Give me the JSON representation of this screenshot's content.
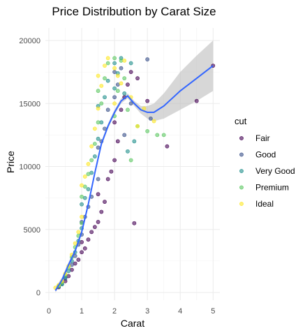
{
  "chart_data": {
    "type": "scatter",
    "title": "Price Distribution by Carat Size",
    "xlabel": "Carat",
    "ylabel": "Price",
    "xlim": [
      0,
      5.1
    ],
    "ylim": [
      0,
      20000
    ],
    "x_ticks": [
      0,
      1,
      2,
      3,
      4,
      5
    ],
    "x_tick_labels": [
      "0",
      "1",
      "2",
      "3",
      "4",
      "5"
    ],
    "y_ticks": [
      0,
      5000,
      10000,
      15000,
      20000
    ],
    "y_tick_labels": [
      "0",
      "5000",
      "10000",
      "15000",
      "20000"
    ],
    "grid": true,
    "legend": {
      "title": "cut",
      "placement": "right"
    },
    "series": [
      {
        "name": "Fair",
        "color": "#440154",
        "points": [
          [
            0.3,
            420
          ],
          [
            0.5,
            900
          ],
          [
            0.6,
            1300
          ],
          [
            0.7,
            1800
          ],
          [
            0.8,
            2300
          ],
          [
            0.9,
            2600
          ],
          [
            1.0,
            3200
          ],
          [
            1.0,
            4000
          ],
          [
            1.1,
            3500
          ],
          [
            1.2,
            4200
          ],
          [
            1.3,
            4800
          ],
          [
            1.4,
            5200
          ],
          [
            1.5,
            5600
          ],
          [
            1.5,
            7800
          ],
          [
            1.6,
            6400
          ],
          [
            1.7,
            7200
          ],
          [
            1.8,
            9000
          ],
          [
            1.9,
            9600
          ],
          [
            2.0,
            10500
          ],
          [
            2.0,
            13500
          ],
          [
            2.1,
            12000
          ],
          [
            2.2,
            14500
          ],
          [
            2.3,
            15500
          ],
          [
            2.4,
            16500
          ],
          [
            2.5,
            17500
          ],
          [
            2.6,
            5500
          ],
          [
            2.7,
            17000
          ],
          [
            3.0,
            15200
          ],
          [
            3.6,
            11600
          ],
          [
            4.5,
            15200
          ],
          [
            5.0,
            18000
          ]
        ]
      },
      {
        "name": "Good",
        "color": "#3b528b",
        "points": [
          [
            0.3,
            500
          ],
          [
            0.4,
            700
          ],
          [
            0.5,
            1100
          ],
          [
            0.7,
            2200
          ],
          [
            0.8,
            2900
          ],
          [
            0.9,
            3800
          ],
          [
            1.0,
            4600
          ],
          [
            1.0,
            5600
          ],
          [
            1.1,
            6000
          ],
          [
            1.2,
            6800
          ],
          [
            1.3,
            7600
          ],
          [
            1.5,
            9000
          ],
          [
            1.5,
            11500
          ],
          [
            1.6,
            12000
          ],
          [
            1.7,
            13000
          ],
          [
            1.8,
            14500
          ],
          [
            2.0,
            15500
          ],
          [
            2.0,
            17500
          ],
          [
            2.1,
            16500
          ],
          [
            2.2,
            17800
          ],
          [
            2.3,
            12500
          ],
          [
            2.5,
            15000
          ],
          [
            3.0,
            18500
          ],
          [
            3.1,
            13800
          ]
        ]
      },
      {
        "name": "Very Good",
        "color": "#21908c",
        "points": [
          [
            0.3,
            480
          ],
          [
            0.4,
            650
          ],
          [
            0.5,
            1200
          ],
          [
            0.6,
            1700
          ],
          [
            0.7,
            2500
          ],
          [
            0.8,
            3200
          ],
          [
            0.9,
            4100
          ],
          [
            1.0,
            5100
          ],
          [
            1.0,
            7000
          ],
          [
            1.1,
            7500
          ],
          [
            1.2,
            8200
          ],
          [
            1.3,
            9500
          ],
          [
            1.4,
            10800
          ],
          [
            1.5,
            12200
          ],
          [
            1.5,
            14800
          ],
          [
            1.6,
            13500
          ],
          [
            1.7,
            15500
          ],
          [
            1.8,
            16800
          ],
          [
            2.0,
            18200
          ],
          [
            2.0,
            16200
          ],
          [
            2.1,
            17400
          ],
          [
            2.2,
            18600
          ],
          [
            2.3,
            15800
          ],
          [
            2.4,
            11200
          ],
          [
            2.5,
            18200
          ],
          [
            2.6,
            12000
          ]
        ]
      },
      {
        "name": "Premium",
        "color": "#5dc863",
        "points": [
          [
            0.3,
            520
          ],
          [
            0.4,
            800
          ],
          [
            0.5,
            1400
          ],
          [
            0.6,
            2000
          ],
          [
            0.7,
            2800
          ],
          [
            0.8,
            3600
          ],
          [
            0.9,
            4500
          ],
          [
            1.0,
            5500
          ],
          [
            1.0,
            7600
          ],
          [
            1.1,
            8400
          ],
          [
            1.2,
            9400
          ],
          [
            1.3,
            10500
          ],
          [
            1.4,
            11800
          ],
          [
            1.5,
            13500
          ],
          [
            1.5,
            16000
          ],
          [
            1.6,
            15000
          ],
          [
            1.7,
            17000
          ],
          [
            1.8,
            18200
          ],
          [
            2.0,
            18600
          ],
          [
            2.0,
            14000
          ],
          [
            2.1,
            16000
          ],
          [
            2.2,
            18400
          ],
          [
            2.3,
            17000
          ],
          [
            2.4,
            14500
          ],
          [
            2.5,
            10500
          ],
          [
            2.7,
            13200
          ],
          [
            3.0,
            12800
          ],
          [
            3.3,
            12500
          ],
          [
            3.5,
            12500
          ]
        ]
      },
      {
        "name": "Ideal",
        "color": "#fde725",
        "points": [
          [
            0.2,
            380
          ],
          [
            0.3,
            600
          ],
          [
            0.4,
            900
          ],
          [
            0.5,
            1500
          ],
          [
            0.6,
            2100
          ],
          [
            0.7,
            3000
          ],
          [
            0.8,
            3900
          ],
          [
            0.9,
            4800
          ],
          [
            1.0,
            6000
          ],
          [
            1.0,
            8500
          ],
          [
            1.1,
            9200
          ],
          [
            1.2,
            10200
          ],
          [
            1.3,
            11600
          ],
          [
            1.4,
            13000
          ],
          [
            1.5,
            14600
          ],
          [
            1.5,
            17200
          ],
          [
            1.6,
            16400
          ],
          [
            1.7,
            18000
          ],
          [
            1.8,
            18600
          ],
          [
            2.0,
            17800
          ],
          [
            2.0,
            15000
          ],
          [
            2.1,
            17200
          ],
          [
            2.2,
            16600
          ],
          [
            2.3,
            18400
          ],
          [
            2.5,
            15500
          ],
          [
            2.7,
            13200
          ],
          [
            2.9,
            14600
          ],
          [
            3.2,
            13600
          ]
        ]
      }
    ],
    "smooth": {
      "color": "#3366ff",
      "band_color": "#bdbdbd",
      "points": [
        [
          0.2,
          150
        ],
        [
          0.4,
          1000
        ],
        [
          0.6,
          2200
        ],
        [
          0.8,
          3300
        ],
        [
          1.0,
          4800
        ],
        [
          1.2,
          7000
        ],
        [
          1.4,
          9500
        ],
        [
          1.6,
          11800
        ],
        [
          1.8,
          13200
        ],
        [
          2.0,
          14300
        ],
        [
          2.2,
          15200
        ],
        [
          2.4,
          15600
        ],
        [
          2.6,
          15000
        ],
        [
          2.8,
          14500
        ],
        [
          3.0,
          14300
        ],
        [
          3.2,
          14300
        ],
        [
          3.5,
          14800
        ],
        [
          4.0,
          16000
        ],
        [
          4.5,
          17000
        ],
        [
          5.0,
          18000
        ]
      ],
      "band_upper": [
        [
          0.2,
          350
        ],
        [
          0.4,
          1200
        ],
        [
          0.6,
          2400
        ],
        [
          0.8,
          3500
        ],
        [
          1.0,
          5000
        ],
        [
          1.2,
          7200
        ],
        [
          1.4,
          9700
        ],
        [
          1.6,
          12000
        ],
        [
          1.8,
          13400
        ],
        [
          2.0,
          14500
        ],
        [
          2.2,
          15400
        ],
        [
          2.4,
          15800
        ],
        [
          2.6,
          15200
        ],
        [
          2.8,
          14800
        ],
        [
          3.0,
          14800
        ],
        [
          3.2,
          15000
        ],
        [
          3.5,
          15800
        ],
        [
          4.0,
          17500
        ],
        [
          4.5,
          18800
        ],
        [
          5.0,
          20000
        ]
      ],
      "band_lower": [
        [
          0.2,
          0
        ],
        [
          0.4,
          800
        ],
        [
          0.6,
          2000
        ],
        [
          0.8,
          3100
        ],
        [
          1.0,
          4600
        ],
        [
          1.2,
          6800
        ],
        [
          1.4,
          9300
        ],
        [
          1.6,
          11600
        ],
        [
          1.8,
          13000
        ],
        [
          2.0,
          14100
        ],
        [
          2.2,
          15000
        ],
        [
          2.4,
          15400
        ],
        [
          2.6,
          14800
        ],
        [
          2.8,
          14200
        ],
        [
          3.0,
          13800
        ],
        [
          3.2,
          13600
        ],
        [
          3.5,
          13800
        ],
        [
          4.0,
          14500
        ],
        [
          4.5,
          15200
        ],
        [
          5.0,
          16000
        ]
      ]
    }
  }
}
